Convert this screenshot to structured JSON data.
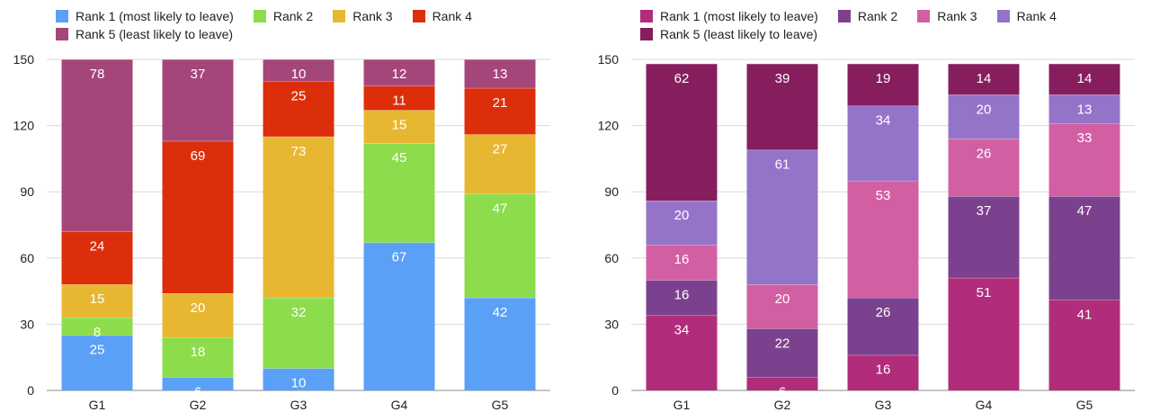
{
  "chart_data": [
    {
      "type": "bar",
      "stacked": true,
      "categories": [
        "G1",
        "G2",
        "G3",
        "G4",
        "G5"
      ],
      "ylim": [
        0,
        150
      ],
      "yticks": [
        0,
        30,
        60,
        90,
        120,
        150
      ],
      "grid": true,
      "legend_position": "top",
      "series": [
        {
          "name": "Rank 1 (most likely to leave)",
          "color": "#5aa0f7",
          "values": [
            25,
            6,
            10,
            67,
            42
          ]
        },
        {
          "name": "Rank 2",
          "color": "#8cdc4c",
          "values": [
            8,
            18,
            32,
            45,
            47
          ]
        },
        {
          "name": "Rank 3",
          "color": "#e8b732",
          "values": [
            15,
            20,
            73,
            15,
            27
          ]
        },
        {
          "name": "Rank 4",
          "color": "#dd2e0b",
          "values": [
            24,
            69,
            25,
            11,
            21
          ]
        },
        {
          "name": "Rank 5 (least likely to leave)",
          "color": "#a5467a",
          "values": [
            78,
            37,
            10,
            12,
            13
          ]
        }
      ]
    },
    {
      "type": "bar",
      "stacked": true,
      "categories": [
        "G1",
        "G2",
        "G3",
        "G4",
        "G5"
      ],
      "ylim": [
        0,
        150
      ],
      "yticks": [
        0,
        30,
        60,
        90,
        120,
        150
      ],
      "grid": true,
      "legend_position": "top",
      "series": [
        {
          "name": "Rank 1 (most likely to leave)",
          "color": "#b12c7b",
          "values": [
            34,
            6,
            16,
            51,
            41
          ]
        },
        {
          "name": "Rank 2",
          "color": "#7c418e",
          "values": [
            16,
            22,
            26,
            37,
            47
          ]
        },
        {
          "name": "Rank 3",
          "color": "#d35fa3",
          "values": [
            16,
            20,
            53,
            26,
            33
          ]
        },
        {
          "name": "Rank 4",
          "color": "#9474c9",
          "values": [
            20,
            61,
            34,
            20,
            13
          ]
        },
        {
          "name": "Rank 5 (least likely to leave)",
          "color": "#861e5d",
          "values": [
            62,
            39,
            19,
            14,
            14
          ]
        }
      ]
    }
  ]
}
